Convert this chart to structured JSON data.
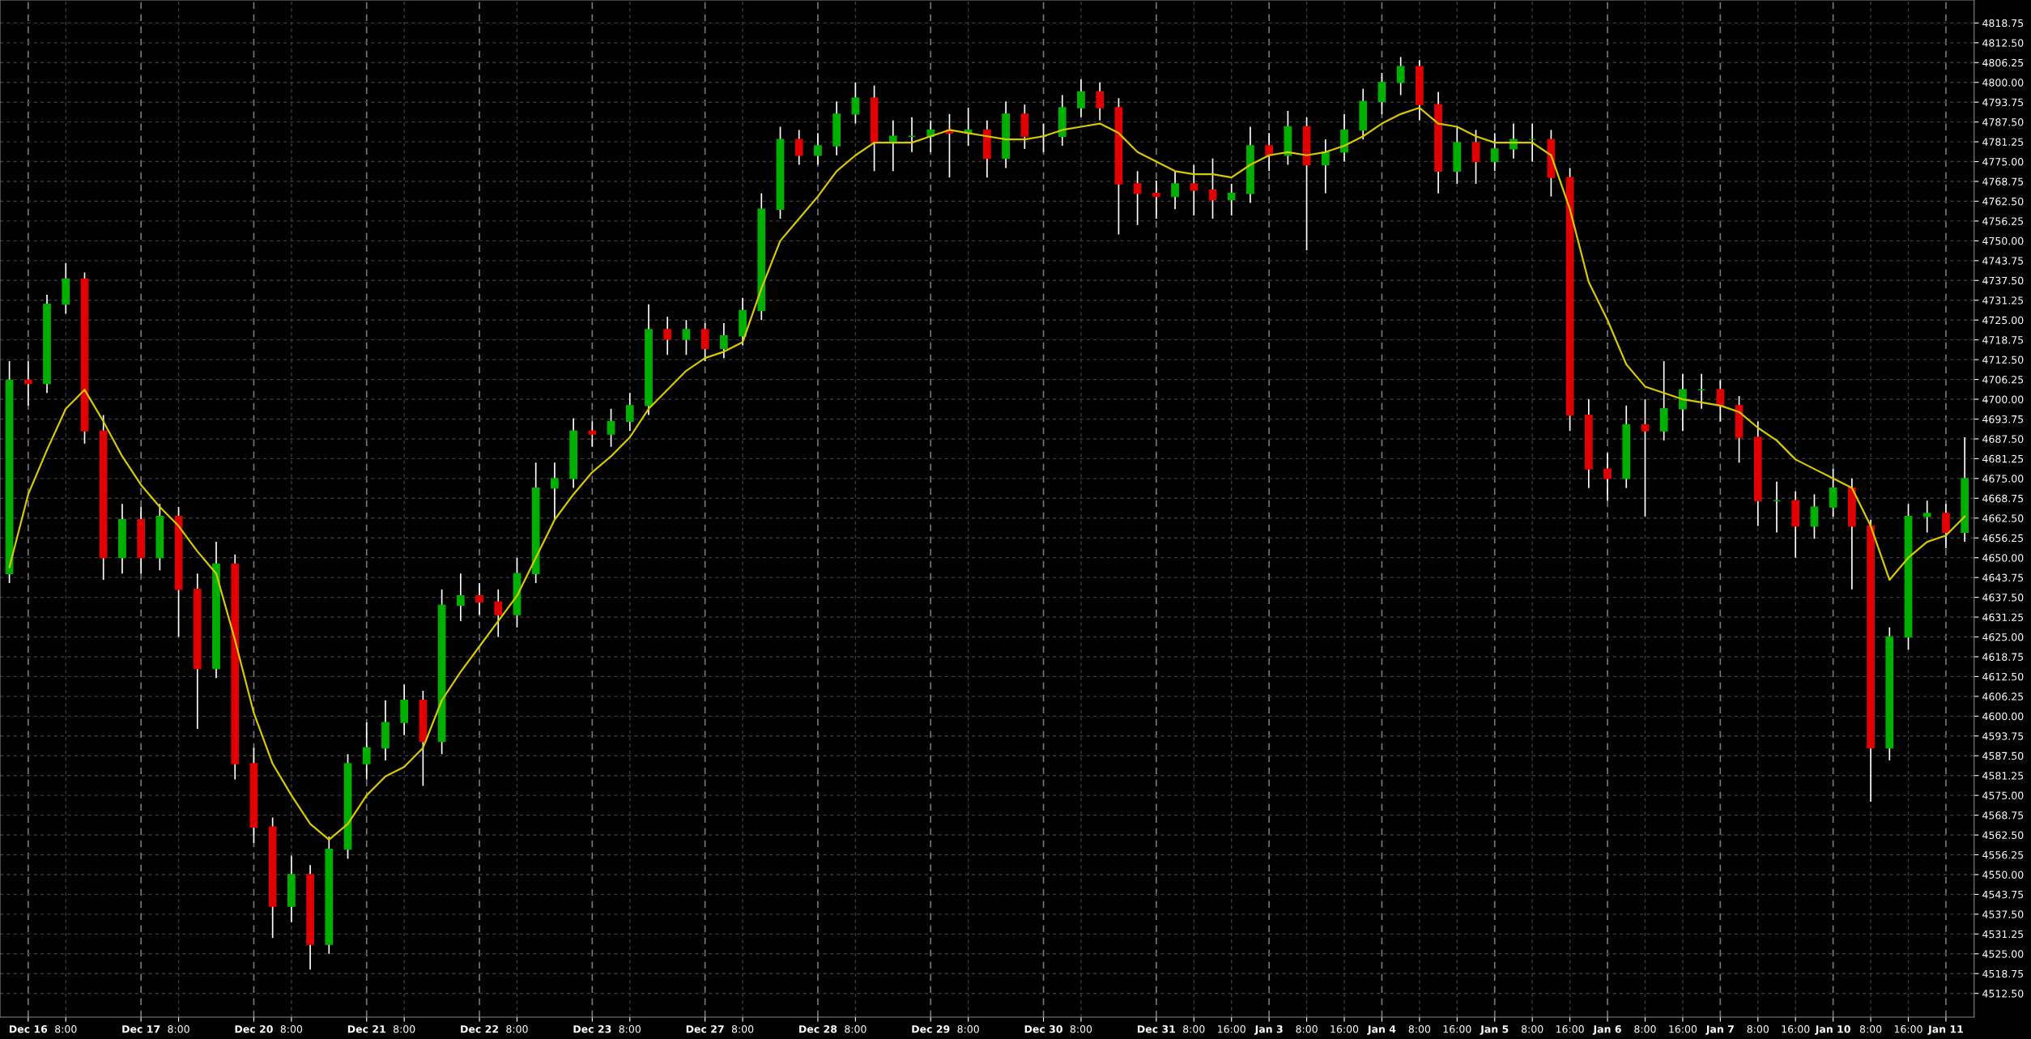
{
  "chart_data": {
    "type": "candlestick",
    "ylim": [
      4505,
      4826
    ],
    "categories": [
      null,
      "Dec 16",
      null,
      "8:00",
      null,
      null,
      null,
      "Dec 17",
      null,
      "8:00",
      null,
      null,
      null,
      "Dec 20",
      null,
      "8:00",
      null,
      null,
      null,
      "Dec 21",
      null,
      "8:00",
      null,
      null,
      null,
      "Dec 22",
      null,
      "8:00",
      null,
      null,
      null,
      "Dec 23",
      null,
      "8:00",
      null,
      null,
      null,
      "Dec 27",
      null,
      "8:00",
      null,
      null,
      null,
      "Dec 28",
      null,
      "8:00",
      null,
      null,
      null,
      "Dec 29",
      null,
      "8:00",
      null,
      null,
      null,
      "Dec 30",
      null,
      "8:00",
      null,
      null,
      null,
      "Dec 31",
      null,
      "8:00",
      null,
      "16:00",
      null,
      "Jan 3",
      null,
      "8:00",
      null,
      "16:00",
      null,
      "Jan 4",
      null,
      "8:00",
      null,
      "16:00",
      null,
      "Jan 5",
      null,
      "8:00",
      null,
      "16:00",
      null,
      "Jan 6",
      null,
      "8:00",
      null,
      "16:00",
      null,
      "Jan 7",
      null,
      "8:00",
      null,
      "16:00",
      null,
      "Jan 10",
      null,
      "8:00",
      null,
      "16:00",
      null,
      "Jan 11",
      null
    ],
    "yticks": [
      {
        "value": 4512.5,
        "label": "4512.50"
      },
      {
        "value": 4518.75,
        "label": "4518.75"
      },
      {
        "value": 4525,
        "label": "4525.00"
      },
      {
        "value": 4531.25,
        "label": "4531.25"
      },
      {
        "value": 4537.5,
        "label": "4537.50"
      },
      {
        "value": 4543.75,
        "label": "4543.75"
      },
      {
        "value": 4550,
        "label": "4550.00"
      },
      {
        "value": 4556.25,
        "label": "4556.25"
      },
      {
        "value": 4562.5,
        "label": "4562.50"
      },
      {
        "value": 4568.75,
        "label": "4568.75"
      },
      {
        "value": 4575,
        "label": "4575.00"
      },
      {
        "value": 4581.25,
        "label": "4581.25"
      },
      {
        "value": 4587.5,
        "label": "4587.50"
      },
      {
        "value": 4593.75,
        "label": "4593.75"
      },
      {
        "value": 4600,
        "label": "4600.00"
      },
      {
        "value": 4606.25,
        "label": "4606.25"
      },
      {
        "value": 4612.5,
        "label": "4612.50"
      },
      {
        "value": 4618.75,
        "label": "4618.75"
      },
      {
        "value": 4625,
        "label": "4625.00"
      },
      {
        "value": 4631.25,
        "label": "4631.25"
      },
      {
        "value": 4637.5,
        "label": "4637.50"
      },
      {
        "value": 4643.75,
        "label": "4643.75"
      },
      {
        "value": 4650,
        "label": "4650.00"
      },
      {
        "value": 4656.25,
        "label": "4656.25"
      },
      {
        "value": 4662.5,
        "label": "4662.50"
      },
      {
        "value": 4668.75,
        "label": "4668.75"
      },
      {
        "value": 4675,
        "label": "4675.00"
      },
      {
        "value": 4681.25,
        "label": "4681.25"
      },
      {
        "value": 4687.5,
        "label": "4687.50"
      },
      {
        "value": 4693.75,
        "label": "4693.75"
      },
      {
        "value": 4700,
        "label": "4700.00"
      },
      {
        "value": 4706.25,
        "label": "4706.25"
      },
      {
        "value": 4712.5,
        "label": "4712.50"
      },
      {
        "value": 4718.75,
        "label": "4718.75"
      },
      {
        "value": 4725,
        "label": "4725.00"
      },
      {
        "value": 4731.25,
        "label": "4731.25"
      },
      {
        "value": 4737.5,
        "label": "4737.50"
      },
      {
        "value": 4743.75,
        "label": "4743.75"
      },
      {
        "value": 4750,
        "label": "4750.00"
      },
      {
        "value": 4756.25,
        "label": "4756.25"
      },
      {
        "value": 4762.5,
        "label": "4762.50"
      },
      {
        "value": 4768.75,
        "label": "4768.75"
      },
      {
        "value": 4775,
        "label": "4775.00"
      },
      {
        "value": 4781.25,
        "label": "4781.25"
      },
      {
        "value": 4787.5,
        "label": "4787.50"
      },
      {
        "value": 4793.75,
        "label": "4793.75"
      },
      {
        "value": 4800,
        "label": "4800.00"
      },
      {
        "value": 4806.25,
        "label": "4806.25"
      },
      {
        "value": 4812.5,
        "label": "4812.50"
      },
      {
        "value": 4818.75,
        "label": "4818.75"
      }
    ],
    "grid": true,
    "series": [
      {
        "ohlc": [
          [
            4645,
            4712,
            4642,
            4706
          ],
          [
            4706,
            4712,
            4698,
            4705
          ],
          [
            4705,
            4733,
            4702,
            4730
          ],
          [
            4730,
            4743,
            4727,
            4738
          ],
          [
            4738,
            4740,
            4686,
            4690
          ],
          [
            4690,
            4695,
            4643,
            4650
          ],
          [
            4650,
            4667,
            4645,
            4662
          ],
          [
            4662,
            4666,
            4645,
            4650
          ],
          [
            4650,
            4667,
            4646,
            4663
          ],
          [
            4663,
            4666,
            4625,
            4640
          ],
          [
            4640,
            4645,
            4596,
            4615
          ],
          [
            4615,
            4655,
            4612,
            4648
          ],
          [
            4648,
            4651,
            4580,
            4585
          ],
          [
            4585,
            4590,
            4560,
            4565
          ],
          [
            4565,
            4568,
            4530,
            4540
          ],
          [
            4540,
            4556,
            4535,
            4550
          ],
          [
            4550,
            4553,
            4520,
            4528
          ],
          [
            4528,
            4562,
            4525,
            4558
          ],
          [
            4558,
            4588,
            4555,
            4585
          ],
          [
            4585,
            4598,
            4580,
            4590
          ],
          [
            4590,
            4605,
            4586,
            4598
          ],
          [
            4598,
            4610,
            4594,
            4605
          ],
          [
            4605,
            4608,
            4578,
            4592
          ],
          [
            4592,
            4640,
            4588,
            4635
          ],
          [
            4635,
            4645,
            4630,
            4638
          ],
          [
            4638,
            4642,
            4632,
            4636
          ],
          [
            4636,
            4640,
            4625,
            4632
          ],
          [
            4632,
            4650,
            4628,
            4645
          ],
          [
            4645,
            4680,
            4642,
            4672
          ],
          [
            4672,
            4680,
            4662,
            4675
          ],
          [
            4675,
            4694,
            4672,
            4690
          ],
          [
            4690,
            4693,
            4685,
            4689
          ],
          [
            4689,
            4697,
            4685,
            4693
          ],
          [
            4693,
            4702,
            4690,
            4698
          ],
          [
            4698,
            4730,
            4695,
            4722
          ],
          [
            4722,
            4726,
            4714,
            4719
          ],
          [
            4719,
            4725,
            4714,
            4722
          ],
          [
            4722,
            4724,
            4712,
            4716
          ],
          [
            4716,
            4724,
            4713,
            4720
          ],
          [
            4720,
            4732,
            4717,
            4728
          ],
          [
            4728,
            4765,
            4725,
            4760
          ],
          [
            4760,
            4786,
            4757,
            4782
          ],
          [
            4782,
            4785,
            4774,
            4777
          ],
          [
            4777,
            4784,
            4774,
            4780
          ],
          [
            4780,
            4794,
            4777,
            4790
          ],
          [
            4790,
            4800,
            4787,
            4795
          ],
          [
            4795,
            4799,
            4772,
            4781
          ],
          [
            4781,
            4788,
            4772,
            4783
          ],
          [
            4783,
            4789,
            4778,
            4783
          ],
          [
            4783,
            4788,
            4778,
            4785
          ],
          [
            4785,
            4790,
            4770,
            4784
          ],
          [
            4784,
            4792,
            4780,
            4785
          ],
          [
            4785,
            4788,
            4770,
            4776
          ],
          [
            4776,
            4794,
            4773,
            4790
          ],
          [
            4790,
            4793,
            4779,
            4783
          ],
          [
            4783,
            4787,
            4778,
            4783
          ],
          [
            4783,
            4796,
            4780,
            4792
          ],
          [
            4792,
            4801,
            4789,
            4797
          ],
          [
            4797,
            4800,
            4788,
            4792
          ],
          [
            4792,
            4795,
            4752,
            4768
          ],
          [
            4768,
            4772,
            4755,
            4765
          ],
          [
            4765,
            4769,
            4757,
            4764
          ],
          [
            4764,
            4772,
            4760,
            4768
          ],
          [
            4768,
            4774,
            4758,
            4766
          ],
          [
            4766,
            4776,
            4757,
            4763
          ],
          [
            4763,
            4768,
            4758,
            4765
          ],
          [
            4765,
            4786,
            4762,
            4780
          ],
          [
            4780,
            4784,
            4772,
            4777
          ],
          [
            4777,
            4791,
            4774,
            4786
          ],
          [
            4786,
            4789,
            4747,
            4774
          ],
          [
            4774,
            4782,
            4765,
            4778
          ],
          [
            4778,
            4790,
            4775,
            4785
          ],
          [
            4785,
            4798,
            4782,
            4794
          ],
          [
            4794,
            4803,
            4790,
            4800
          ],
          [
            4800,
            4808,
            4796,
            4805
          ],
          [
            4805,
            4807,
            4788,
            4793
          ],
          [
            4793,
            4797,
            4765,
            4772
          ],
          [
            4772,
            4786,
            4768,
            4781
          ],
          [
            4781,
            4785,
            4768,
            4775
          ],
          [
            4775,
            4784,
            4772,
            4779
          ],
          [
            4779,
            4787,
            4776,
            4782
          ],
          [
            4782,
            4787,
            4775,
            4782
          ],
          [
            4782,
            4785,
            4764,
            4770
          ],
          [
            4770,
            4773,
            4690,
            4695
          ],
          [
            4695,
            4700,
            4672,
            4678
          ],
          [
            4678,
            4683,
            4668,
            4675
          ],
          [
            4675,
            4698,
            4672,
            4692
          ],
          [
            4692,
            4700,
            4663,
            4690
          ],
          [
            4690,
            4712,
            4687,
            4697
          ],
          [
            4697,
            4708,
            4690,
            4703
          ],
          [
            4703,
            4708,
            4697,
            4703
          ],
          [
            4703,
            4706,
            4693,
            4698
          ],
          [
            4698,
            4701,
            4680,
            4688
          ],
          [
            4688,
            4693,
            4660,
            4668
          ],
          [
            4668,
            4674,
            4658,
            4668
          ],
          [
            4668,
            4671,
            4650,
            4660
          ],
          [
            4660,
            4670,
            4656,
            4666
          ],
          [
            4666,
            4678,
            4663,
            4672
          ],
          [
            4672,
            4675,
            4640,
            4660
          ],
          [
            4660,
            4662,
            4573,
            4590
          ],
          [
            4590,
            4628,
            4586,
            4625
          ],
          [
            4625,
            4667,
            4621,
            4663
          ],
          [
            4663,
            4668,
            4658,
            4664
          ],
          [
            4664,
            4667,
            4653,
            4658
          ],
          [
            4658,
            4688,
            4655,
            4675
          ]
        ]
      },
      {
        "type": "line",
        "color": "#d8c800",
        "values": [
          4647,
          4670,
          4684,
          4697,
          4703,
          4693,
          4682,
          4673,
          4666,
          4660,
          4652,
          4645,
          4624,
          4601,
          4585,
          4575,
          4566,
          4561,
          4566,
          4575,
          4581,
          4584,
          4590,
          4605,
          4614,
          4622,
          4630,
          4638,
          4650,
          4662,
          4670,
          4677,
          4682,
          4688,
          4697,
          4703,
          4709,
          4713,
          4715,
          4718,
          4735,
          4750,
          4757,
          4764,
          4772,
          4777,
          4781,
          4781,
          4781,
          4783,
          4785,
          4784,
          4783,
          4782,
          4782,
          4783,
          4785,
          4786,
          4787,
          4784,
          4778,
          4775,
          4772,
          4771,
          4771,
          4770,
          4774,
          4777,
          4778,
          4777,
          4778,
          4780,
          4783,
          4787,
          4790,
          4792,
          4787,
          4786,
          4783,
          4781,
          4781,
          4781,
          4777,
          4760,
          4737,
          4725,
          4711,
          4704,
          4702,
          4700,
          4699,
          4698,
          4696,
          4691,
          4687,
          4681,
          4678,
          4675,
          4672,
          4660,
          4643,
          4650,
          4655,
          4657,
          4663
        ]
      }
    ]
  }
}
